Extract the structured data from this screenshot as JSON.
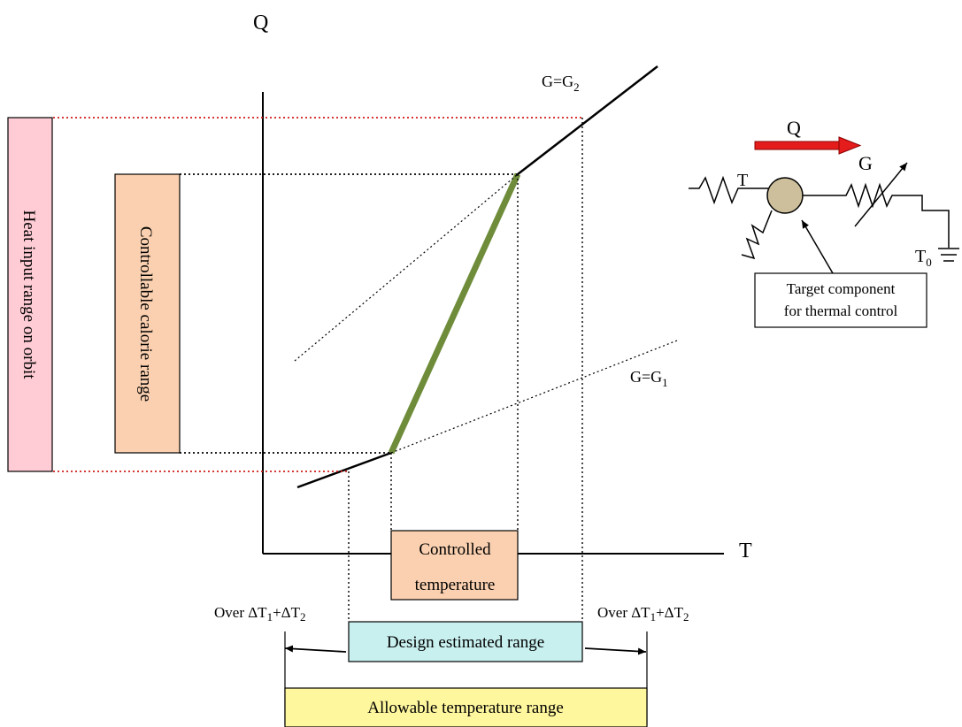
{
  "axes": {
    "y_label": "Q",
    "x_label": "T"
  },
  "lines": {
    "g2": {
      "main": "G=G",
      "sub": "2"
    },
    "g1": {
      "main": "G=G",
      "sub": "1"
    }
  },
  "boxes": {
    "heat_input": "Heat input range on orbit",
    "calorie": "Controllable calorie range",
    "controlled_line1": "Controlled",
    "controlled_line2": "temperature",
    "design": "Design estimated range",
    "allowable": "Allowable temperature range"
  },
  "margins": {
    "prefix": "Over ΔT",
    "s1": "1",
    "plus": "+ΔT",
    "s2": "2"
  },
  "inset": {
    "q_label": "Q",
    "g_label": "G",
    "t_label": "T",
    "t0_main": "T",
    "t0_sub": "0",
    "target_line1": "Target component",
    "target_line2": "for thermal control"
  },
  "colors": {
    "heat_box": "#ffccd5",
    "calorie_box": "#fad0b0",
    "controlled_box": "#fad0b0",
    "design_box": "#c8f0ef",
    "allowable_box": "#fff79e",
    "control_line": "#6e8c3a",
    "red_dotted": "#d11b1b",
    "arrow_red": "#e51c1c",
    "node": "#cdbf9b"
  }
}
